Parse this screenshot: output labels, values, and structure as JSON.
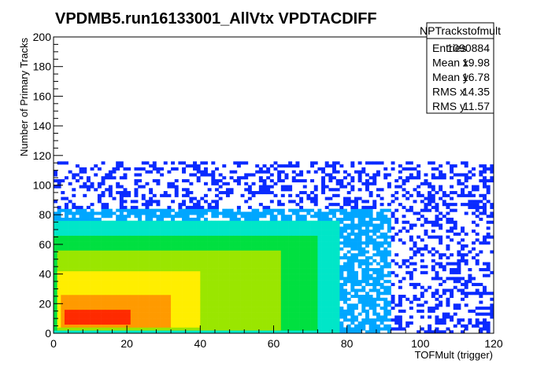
{
  "chart_data": {
    "type": "heatmap",
    "title": "VPDMB5.run16133001_AllVtx VPDTACDIFF",
    "xlabel": "TOFMult (trigger)",
    "ylabel": "Number of Primary Tracks",
    "xlim": [
      0,
      120
    ],
    "ylim": [
      0,
      200
    ],
    "x_ticks": [
      0,
      20,
      40,
      60,
      80,
      100,
      120
    ],
    "y_ticks": [
      0,
      20,
      40,
      60,
      80,
      100,
      120,
      140,
      160,
      180,
      200
    ],
    "colormap": [
      "#5a00ff",
      "#0a2aff",
      "#00a6ff",
      "#00e6c8",
      "#00e040",
      "#9ae600",
      "#ffee00",
      "#ff9a00",
      "#ff2a00"
    ],
    "density_regions": [
      {
        "level": 9,
        "x_range": [
          3,
          21
        ],
        "y_range": [
          5,
          16
        ]
      },
      {
        "level": 8,
        "x_range": [
          2,
          32
        ],
        "y_range": [
          4,
          26
        ]
      },
      {
        "level": 7,
        "x_range": [
          1,
          40
        ],
        "y_range": [
          3,
          42
        ]
      },
      {
        "level": 6,
        "x_range": [
          1,
          62
        ],
        "y_range": [
          2,
          56
        ]
      },
      {
        "level": 5,
        "x_range": [
          0,
          72
        ],
        "y_range": [
          1,
          66
        ]
      },
      {
        "level": 4,
        "x_range": [
          0,
          78
        ],
        "y_range": [
          0,
          76
        ]
      },
      {
        "level": 3,
        "x_range": [
          0,
          92
        ],
        "y_range": [
          0,
          84
        ]
      },
      {
        "level": 2,
        "x_range": [
          0,
          120
        ],
        "y_range": [
          0,
          115
        ]
      }
    ],
    "legend": "top-right",
    "stats": {
      "name": "NPTrackstofmult",
      "rows": [
        {
          "label": "Entries",
          "value": "1090884"
        },
        {
          "label": "Mean x",
          "value": "19.98"
        },
        {
          "label": "Mean y",
          "value": "16.78"
        },
        {
          "label": "RMS x",
          "value": "14.35"
        },
        {
          "label": "RMS y",
          "value": "11.57"
        }
      ]
    }
  }
}
